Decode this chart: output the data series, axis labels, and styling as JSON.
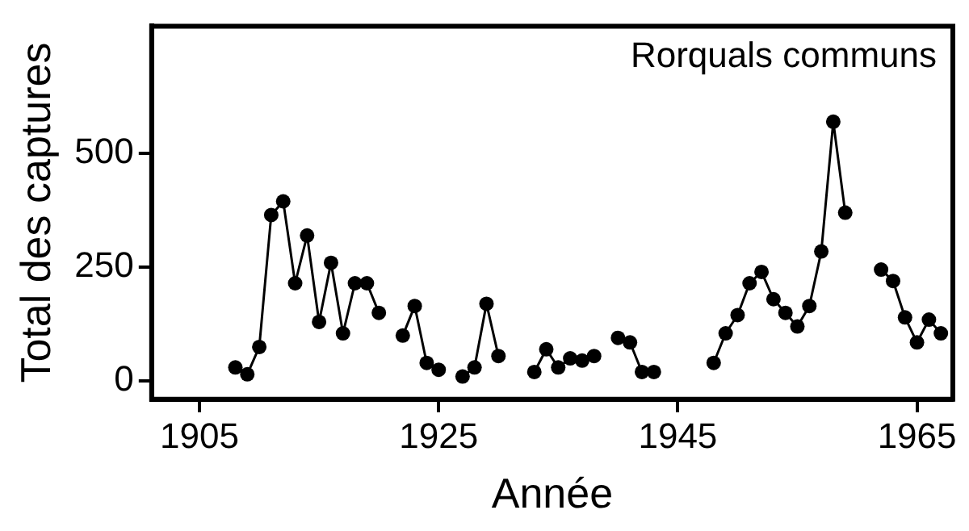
{
  "chart_data": {
    "type": "line",
    "title": "Rorquals communs",
    "xlabel": "Année",
    "ylabel": "Total des captures",
    "x": [
      1908,
      1909,
      1910,
      1911,
      1912,
      1913,
      1914,
      1915,
      1916,
      1917,
      1918,
      1919,
      1920,
      1921,
      1922,
      1923,
      1924,
      1925,
      1926,
      1927,
      1928,
      1929,
      1930,
      1931,
      1932,
      1933,
      1934,
      1935,
      1936,
      1937,
      1938,
      1939,
      1940,
      1941,
      1942,
      1943,
      1944,
      1945,
      1946,
      1947,
      1948,
      1949,
      1950,
      1951,
      1952,
      1953,
      1954,
      1955,
      1956,
      1957,
      1958,
      1959,
      1960,
      1961,
      1962,
      1963,
      1964,
      1965,
      1966,
      1967
    ],
    "series": [
      {
        "color": "#000000",
        "values": [
          30,
          15,
          75,
          365,
          395,
          215,
          320,
          130,
          260,
          105,
          215,
          215,
          150,
          null,
          100,
          165,
          40,
          25,
          null,
          10,
          30,
          170,
          55,
          null,
          null,
          20,
          70,
          30,
          50,
          45,
          55,
          null,
          95,
          85,
          20,
          20,
          null,
          null,
          null,
          null,
          40,
          105,
          145,
          215,
          240,
          180,
          150,
          120,
          165,
          285,
          570,
          370,
          null,
          null,
          245,
          220,
          140,
          85,
          135,
          105
        ]
      }
    ],
    "xlim": [
      1901,
      1968
    ],
    "xticks": [
      1905,
      1925,
      1945,
      1965
    ],
    "ylim": [
      -40,
      780
    ],
    "yticks": [
      0,
      250,
      500
    ],
    "grid": false,
    "legend": false,
    "marker": "circle",
    "line_style": "solid"
  }
}
